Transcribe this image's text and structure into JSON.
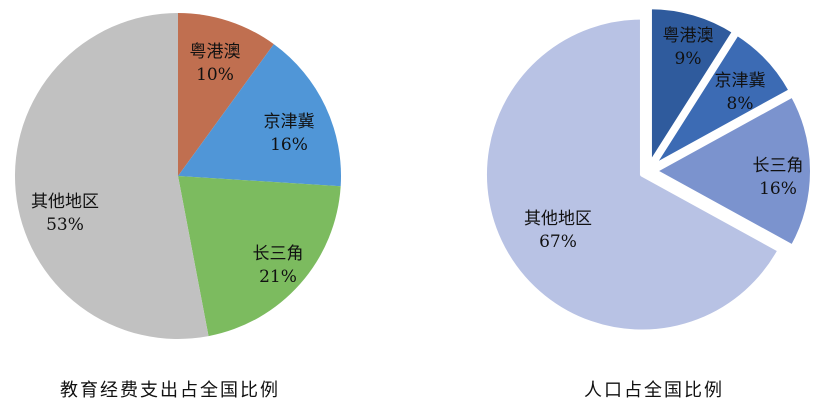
{
  "chart_data": [
    {
      "type": "pie",
      "title": "教育经费支出占全国比例",
      "direction": "clockwise",
      "start_angle_deg": 0,
      "exploded": false,
      "labels_inside": true,
      "legend": "none",
      "slices": [
        {
          "name": "粤港澳",
          "value": 10,
          "pct_label": "10%",
          "color": "#C06F50"
        },
        {
          "name": "京津冀",
          "value": 16,
          "pct_label": "16%",
          "color": "#5096D7"
        },
        {
          "name": "长三角",
          "value": 21,
          "pct_label": "21%",
          "color": "#7CBB5F"
        },
        {
          "name": "其他地区",
          "value": 53,
          "pct_label": "53%",
          "color": "#C1C1C1"
        }
      ]
    },
    {
      "type": "pie",
      "title": "人口占全国比例",
      "direction": "clockwise",
      "start_angle_deg": 0,
      "exploded": true,
      "labels_inside": true,
      "legend": "none",
      "slices": [
        {
          "name": "粤港澳",
          "value": 9,
          "pct_label": "9%",
          "color": "#2F5B9D"
        },
        {
          "name": "京津冀",
          "value": 8,
          "pct_label": "8%",
          "color": "#3C6BB4"
        },
        {
          "name": "长三角",
          "value": 16,
          "pct_label": "16%",
          "color": "#7B93CE"
        },
        {
          "name": "其他地区",
          "value": 67,
          "pct_label": "67%",
          "color": "#B8C2E4"
        }
      ]
    }
  ]
}
